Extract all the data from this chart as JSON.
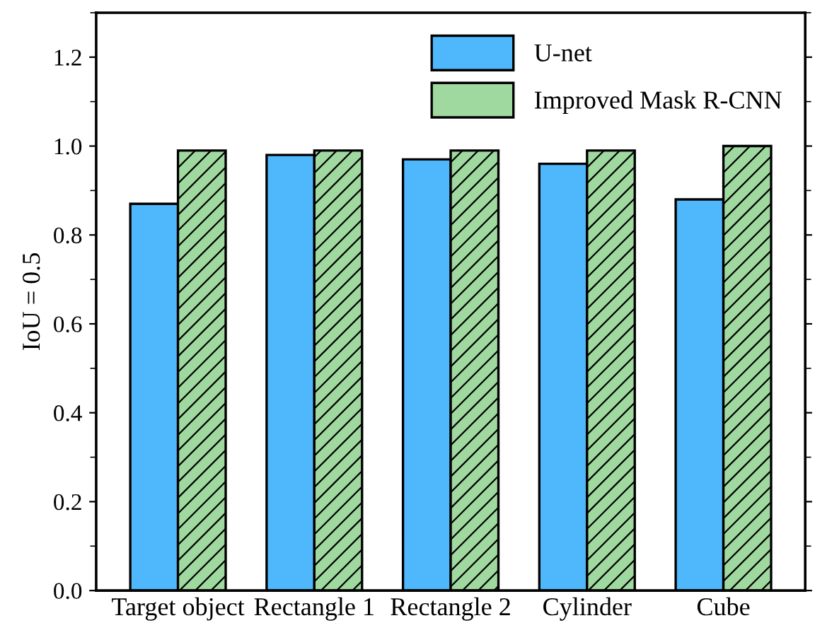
{
  "chart_data": {
    "type": "bar",
    "ylabel": "IoU = 0.5",
    "categories": [
      "Target object",
      "Rectangle 1",
      "Rectangle 2",
      "Cylinder",
      "Cube"
    ],
    "series": [
      {
        "name": "U-net",
        "color": "#4fb8fc",
        "values": [
          0.87,
          0.98,
          0.97,
          0.96,
          0.88
        ]
      },
      {
        "name": "Improved Mask R-CNN",
        "color": "#a0d9a0",
        "values": [
          0.99,
          0.99,
          0.99,
          0.99,
          1.0
        ]
      }
    ],
    "ylim": [
      0,
      1.3
    ],
    "yticks": [
      {
        "value": 0,
        "label": "0.0"
      },
      {
        "value": 0.2,
        "label": "0.2"
      },
      {
        "value": 0.4,
        "label": "0.4"
      },
      {
        "value": 0.6,
        "label": "0.6"
      },
      {
        "value": 0.8,
        "label": "0.8"
      },
      {
        "value": 1,
        "label": "1.0"
      },
      {
        "value": 1.2,
        "label": "1.2"
      }
    ],
    "grid": false,
    "legend": "top right"
  }
}
